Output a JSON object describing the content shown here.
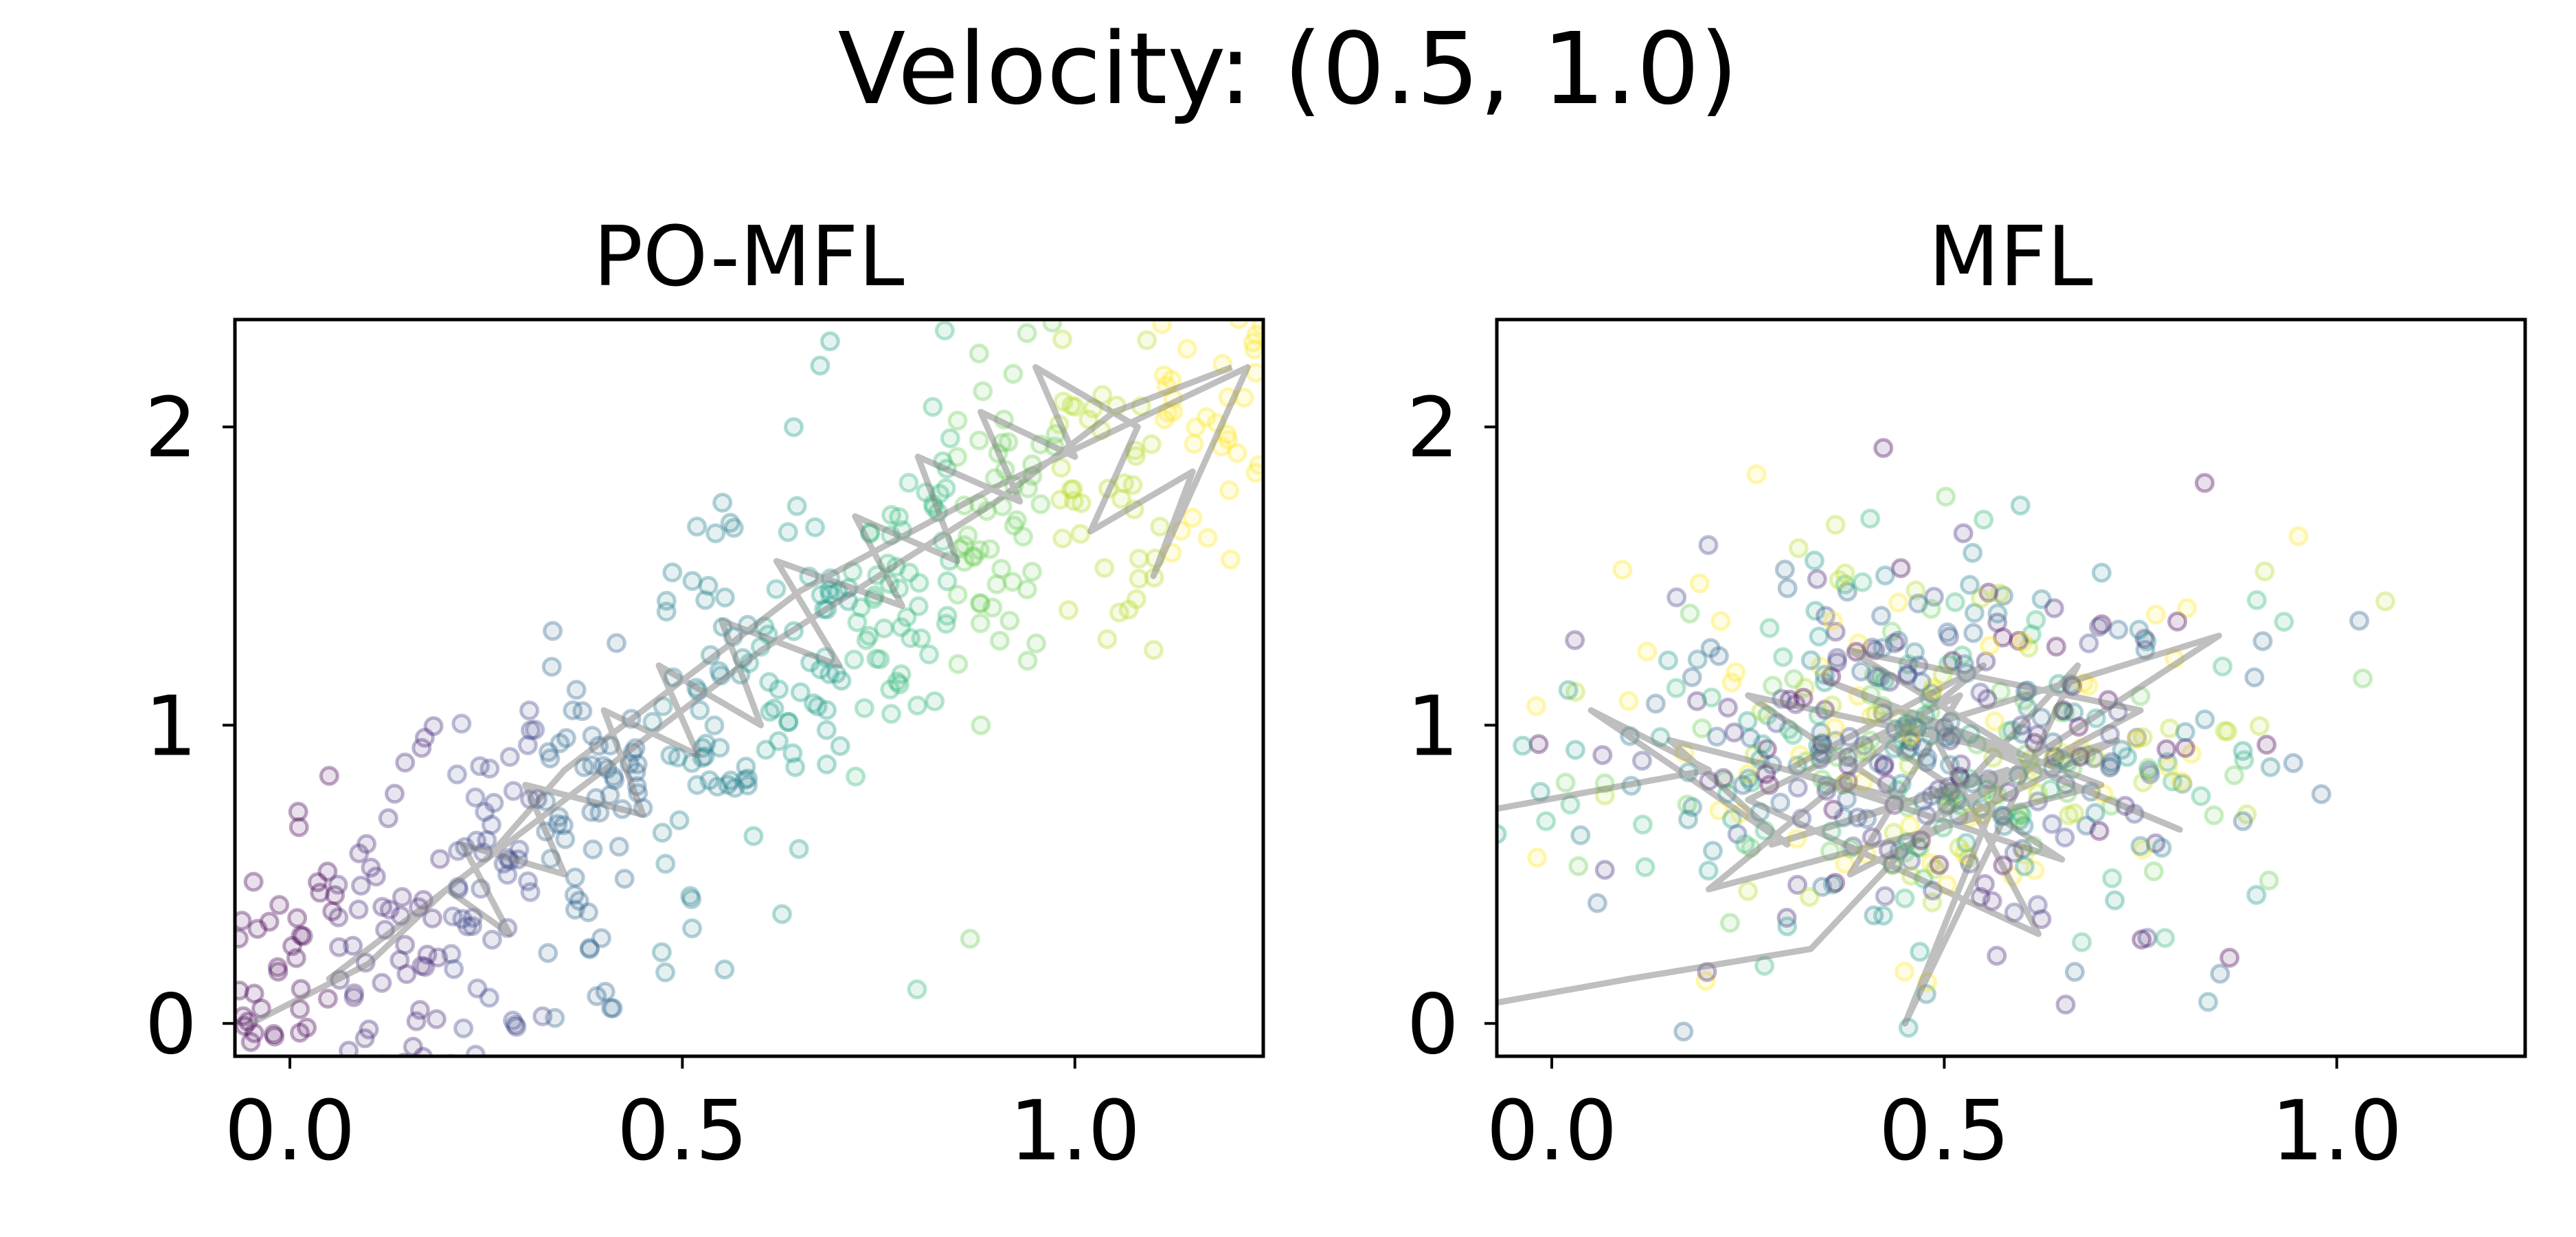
{
  "figure_title": "Velocity: (0.5, 1.0)",
  "colors": {
    "line": "#7f7f7f",
    "axes": "#000000",
    "viridis": [
      "#440154",
      "#482878",
      "#3e4989",
      "#31688e",
      "#26828e",
      "#1f9e89",
      "#35b779",
      "#6ece58",
      "#b5de2b",
      "#fde725"
    ]
  },
  "chart_data": [
    {
      "type": "scatter",
      "title": "PO-MFL",
      "xlabel": "",
      "ylabel": "",
      "xlim": [
        -0.07,
        1.24
      ],
      "ylim": [
        -0.11,
        2.36
      ],
      "xticks": [
        {
          "value": 0.0,
          "label": "0.0"
        },
        {
          "value": 0.5,
          "label": "0.5"
        },
        {
          "value": 1.0,
          "label": "1.0"
        }
      ],
      "yticks": [
        {
          "value": 0,
          "label": "0"
        },
        {
          "value": 1,
          "label": "1"
        },
        {
          "value": 2,
          "label": "2"
        }
      ],
      "marker": "hollow circle, viridis-colored by sample index, alpha ~0.3",
      "point_cloud": {
        "count": 520,
        "x_range": [
          -0.07,
          1.24
        ],
        "y_center_slope": 1.75,
        "y_center_intercept": 0.1,
        "y_spread": 0.33,
        "color_trend": "purple at lower-left to yellow at upper-right"
      },
      "trajectory": {
        "x": [
          -0.05,
          0.1,
          0.2,
          0.28,
          0.22,
          0.35,
          0.3,
          0.45,
          0.4,
          0.52,
          0.47,
          0.6,
          0.55,
          0.7,
          0.62,
          0.78,
          0.72,
          0.85,
          0.8,
          0.93,
          0.88,
          1.0,
          0.95,
          1.08,
          1.02,
          1.15,
          1.1,
          1.22,
          0.9,
          0.65,
          0.5,
          0.35,
          0.25,
          0.15,
          0.05,
          0.3,
          0.45,
          0.6,
          0.75,
          0.9,
          1.05,
          1.2
        ],
        "y": [
          0.0,
          0.2,
          0.45,
          0.3,
          0.6,
          0.5,
          0.8,
          0.7,
          1.05,
          0.9,
          1.2,
          1.0,
          1.35,
          1.2,
          1.55,
          1.4,
          1.7,
          1.55,
          1.9,
          1.75,
          2.05,
          1.9,
          2.2,
          2.0,
          1.65,
          1.85,
          1.5,
          2.2,
          1.8,
          1.45,
          1.15,
          0.85,
          0.55,
          0.35,
          0.15,
          0.65,
          0.95,
          1.25,
          1.5,
          1.75,
          2.05,
          2.2
        ]
      }
    },
    {
      "type": "scatter",
      "title": "MFL",
      "xlabel": "",
      "ylabel": "",
      "xlim": [
        -0.07,
        1.24
      ],
      "ylim": [
        -0.11,
        2.36
      ],
      "xticks": [
        {
          "value": 0.0,
          "label": "0.0"
        },
        {
          "value": 0.5,
          "label": "0.5"
        },
        {
          "value": 1.0,
          "label": "1.0"
        }
      ],
      "yticks": [
        {
          "value": 0,
          "label": "0"
        },
        {
          "value": 1,
          "label": "1"
        },
        {
          "value": 2,
          "label": "2"
        }
      ],
      "marker": "hollow circle, viridis-colored by sample index, alpha ~0.3",
      "point_cloud": {
        "count": 520,
        "x_center": 0.48,
        "x_spread": 0.22,
        "y_center": 0.92,
        "y_spread": 0.33,
        "color_trend": "mixed colors throughout"
      },
      "trajectory": {
        "x": [
          -0.07,
          0.2,
          0.05,
          0.3,
          0.15,
          0.45,
          0.25,
          0.6,
          0.38,
          0.75,
          0.5,
          0.85,
          0.42,
          0.65,
          0.3,
          0.55,
          0.2,
          0.7,
          0.35,
          0.8,
          0.48,
          0.62,
          0.25,
          0.52,
          0.38,
          0.72,
          0.28,
          0.58,
          0.45,
          0.67,
          0.33,
          0.1,
          -0.07
        ],
        "y": [
          0.72,
          0.85,
          1.05,
          0.6,
          0.95,
          0.75,
          1.1,
          0.9,
          1.25,
          1.05,
          0.7,
          1.3,
          0.95,
          0.55,
          0.85,
          1.2,
          0.45,
          0.8,
          1.15,
          0.65,
          1.0,
          0.3,
          0.75,
          1.1,
          0.5,
          0.95,
          0.6,
          0.85,
          0.0,
          1.2,
          0.25,
          0.15,
          0.07
        ]
      }
    }
  ]
}
